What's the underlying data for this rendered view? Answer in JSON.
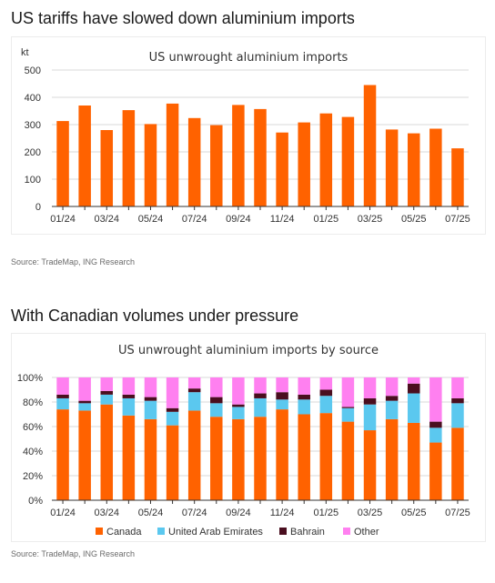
{
  "headings": {
    "first": "US tariffs have slowed down aluminium imports",
    "second": "With Canadian volumes under pressure"
  },
  "sources": {
    "first": "Source: TradeMap, ING Research",
    "second": "Source: TradeMap, ING Research"
  },
  "colors": {
    "orange": "#ff6200",
    "blue": "#5bc8ef",
    "maroon": "#4a0e1f",
    "pink": "#ff80f0",
    "grid": "#d9d9d9",
    "axis": "#333333"
  },
  "chart_data": [
    {
      "type": "bar",
      "title": "US unwrought aluminium imports",
      "unit_label": "kt",
      "categories": [
        "01/24",
        "02/24",
        "03/24",
        "04/24",
        "05/24",
        "06/24",
        "07/24",
        "08/24",
        "09/24",
        "10/24",
        "11/24",
        "12/24",
        "01/25",
        "02/25",
        "03/25",
        "04/25",
        "05/25",
        "06/25",
        "07/25"
      ],
      "tick_labels": [
        "01/24",
        "",
        "03/24",
        "",
        "05/24",
        "",
        "07/24",
        "",
        "09/24",
        "",
        "11/24",
        "",
        "01/25",
        "",
        "03/25",
        "",
        "05/25",
        "",
        "07/25"
      ],
      "values": [
        313,
        370,
        280,
        353,
        302,
        377,
        324,
        298,
        372,
        357,
        271,
        308,
        341,
        328,
        445,
        282,
        268,
        285,
        213
      ],
      "ylim": [
        0,
        500
      ],
      "yticks": [
        0,
        100,
        200,
        300,
        400,
        500
      ],
      "grid": true
    },
    {
      "type": "bar",
      "stacked": true,
      "title": "US unwrought aluminium imports by source",
      "categories": [
        "01/24",
        "02/24",
        "03/24",
        "04/24",
        "05/24",
        "06/24",
        "07/24",
        "08/24",
        "09/24",
        "10/24",
        "11/24",
        "12/24",
        "01/25",
        "02/25",
        "03/25",
        "04/25",
        "05/25",
        "06/25",
        "07/25"
      ],
      "tick_labels": [
        "01/24",
        "",
        "03/24",
        "",
        "05/24",
        "",
        "07/24",
        "",
        "09/24",
        "",
        "11/24",
        "",
        "01/25",
        "",
        "03/25",
        "",
        "05/25",
        "",
        "07/25"
      ],
      "yticks": [
        "0%",
        "20%",
        "40%",
        "60%",
        "80%",
        "100%"
      ],
      "ylim": [
        0,
        100
      ],
      "legend_position": "bottom",
      "series": [
        {
          "name": "Canada",
          "color": "#ff6200",
          "values": [
            74,
            73,
            78,
            69,
            66,
            61,
            73,
            68,
            66,
            68,
            74,
            70,
            71,
            64,
            57,
            66,
            63,
            47,
            59
          ]
        },
        {
          "name": "United Arab Emirates",
          "color": "#5bc8ef",
          "values": [
            9,
            6,
            8,
            14,
            15,
            11,
            15,
            11,
            10,
            15,
            8,
            12,
            14,
            11,
            21,
            15,
            24,
            12,
            20
          ]
        },
        {
          "name": "Bahrain",
          "color": "#4a0e1f",
          "values": [
            3,
            2,
            3,
            3,
            3,
            3,
            3,
            5,
            2,
            4,
            6,
            4,
            5,
            1,
            5,
            4,
            8,
            5,
            4
          ]
        },
        {
          "name": "Other",
          "color": "#ff80f0",
          "values": [
            14,
            19,
            11,
            14,
            16,
            25,
            9,
            16,
            22,
            13,
            12,
            14,
            10,
            24,
            17,
            15,
            5,
            36,
            17
          ]
        }
      ]
    }
  ]
}
